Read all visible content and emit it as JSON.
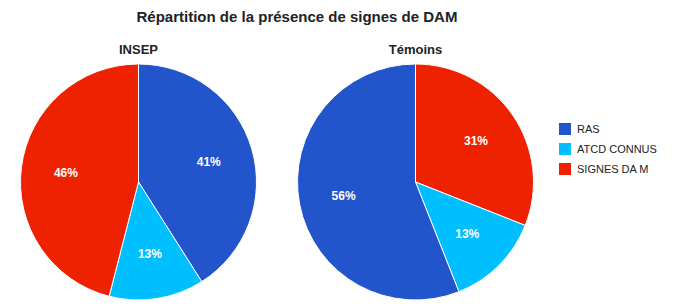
{
  "title": "Répartition de la présence de signes de DAM",
  "chart_data": [
    {
      "type": "pie",
      "title": "INSEP",
      "categories": [
        "RAS",
        "ATCD CONNUS",
        "SIGNES DA M"
      ],
      "values": [
        41,
        13,
        46
      ],
      "value_labels": [
        "41%",
        "13%",
        "46%"
      ],
      "colors": [
        "#2255CC",
        "#00BFFF",
        "#EE2200"
      ],
      "data_labels": true,
      "legend": "right"
    },
    {
      "type": "pie",
      "title": "Témoins",
      "categories": [
        "SIGNES DA M",
        "ATCD CONNUS",
        "RAS"
      ],
      "values": [
        31,
        13,
        56
      ],
      "value_labels": [
        "31%",
        "13%",
        "56%"
      ],
      "colors": [
        "#EE2200",
        "#00BFFF",
        "#2255CC"
      ],
      "data_labels": true
    }
  ]
}
